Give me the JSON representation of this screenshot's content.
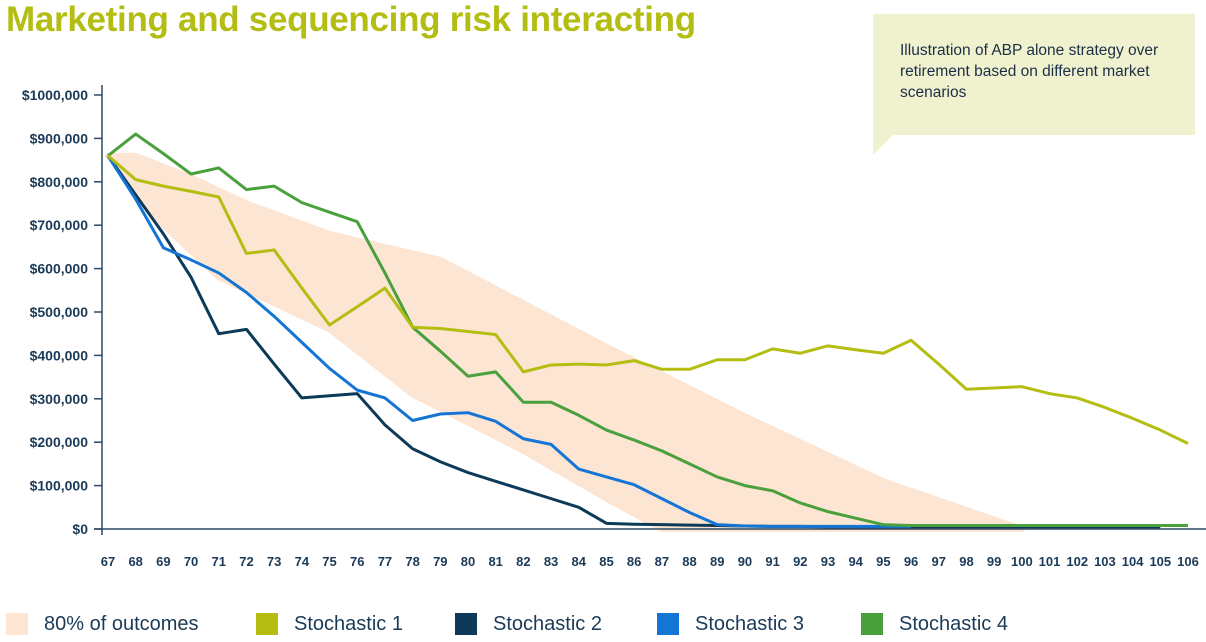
{
  "title": "Marketing and sequencing risk interacting",
  "callout": "Illustration of ABP alone strategy over retirement based on different market scenarios",
  "chart_data": {
    "type": "line",
    "title": "Marketing and sequencing risk interacting",
    "xlabel": "",
    "ylabel": "",
    "xlim": [
      67,
      106
    ],
    "ylim": [
      0,
      1000000
    ],
    "x_ticks": [
      "67",
      "68",
      "69",
      "70",
      "71",
      "72",
      "73",
      "74",
      "75",
      "76",
      "77",
      "78",
      "79",
      "80",
      "81",
      "82",
      "83",
      "84",
      "85",
      "86",
      "87",
      "88",
      "89",
      "90",
      "91",
      "92",
      "93",
      "94",
      "95",
      "96",
      "97",
      "98",
      "99",
      "100",
      "101",
      "102",
      "103",
      "104",
      "105",
      "106"
    ],
    "y_ticks": [
      {
        "value": 0,
        "label": "$0"
      },
      {
        "value": 100000,
        "label": "$100,000"
      },
      {
        "value": 200000,
        "label": "$200,000"
      },
      {
        "value": 300000,
        "label": "$300,000"
      },
      {
        "value": 400000,
        "label": "$400,000"
      },
      {
        "value": 500000,
        "label": "$500,000"
      },
      {
        "value": 600000,
        "label": "$600,000"
      },
      {
        "value": 700000,
        "label": "$700,000"
      },
      {
        "value": 800000,
        "label": "$800,000"
      },
      {
        "value": 900000,
        "label": "$900,000"
      },
      {
        "value": 1000000,
        "label": "$1000,000"
      }
    ],
    "band": {
      "name": "80% of outcomes",
      "color": "#fde5d3",
      "upper": [
        [
          67,
          860000
        ],
        [
          68,
          860000
        ],
        [
          70,
          810000
        ],
        [
          72,
          750000
        ],
        [
          75,
          680000
        ],
        [
          79,
          620000
        ],
        [
          85,
          420000
        ],
        [
          90,
          260000
        ],
        [
          95,
          110000
        ],
        [
          100,
          0
        ]
      ],
      "lower": [
        [
          100,
          0
        ],
        [
          87,
          0
        ],
        [
          85,
          70000
        ],
        [
          82,
          180000
        ],
        [
          78,
          310000
        ],
        [
          75,
          460000
        ],
        [
          73,
          520000
        ],
        [
          71,
          580000
        ],
        [
          69,
          700000
        ],
        [
          67,
          860000
        ]
      ]
    },
    "series": [
      {
        "name": "Stochastic 1",
        "color": "#b3bd12",
        "x": [
          67,
          68,
          69,
          70,
          71,
          72,
          73,
          74,
          75,
          76,
          77,
          78,
          79,
          80,
          81,
          82,
          83,
          84,
          85,
          86,
          87,
          88,
          89,
          90,
          91,
          92,
          93,
          94,
          95,
          96,
          97,
          98,
          99,
          100,
          101,
          102,
          103,
          104,
          105,
          106
        ],
        "values": [
          860000,
          805000,
          790000,
          778000,
          765000,
          635000,
          643000,
          555000,
          470000,
          512000,
          555000,
          465000,
          462000,
          455000,
          448000,
          362000,
          378000,
          380000,
          378000,
          388000,
          368000,
          368000,
          390000,
          390000,
          415000,
          405000,
          422000,
          413000,
          405000,
          435000,
          380000,
          322000,
          325000,
          328000,
          312000,
          302000,
          280000,
          255000,
          228000,
          197000
        ]
      },
      {
        "name": "Stochastic 2",
        "color": "#0e3a5a",
        "x": [
          67,
          68,
          69,
          70,
          71,
          72,
          73,
          74,
          75,
          76,
          77,
          78,
          79,
          80,
          81,
          82,
          83,
          84,
          85,
          86,
          87,
          88,
          89,
          90,
          91,
          92,
          93,
          94,
          95,
          96,
          97,
          98,
          99,
          100,
          101,
          102,
          103,
          104,
          105
        ],
        "values": [
          860000,
          770000,
          680000,
          580000,
          450000,
          460000,
          380000,
          302000,
          307000,
          312000,
          240000,
          185000,
          155000,
          130000,
          110000,
          90000,
          70000,
          50000,
          13000,
          11000,
          10000,
          9000,
          8000,
          7000,
          6000,
          6000,
          5000,
          5000,
          5000,
          5000,
          5000,
          5000,
          5000,
          5000,
          5000,
          5000,
          5000,
          5000,
          5000
        ]
      },
      {
        "name": "Stochastic 3",
        "color": "#1475d4",
        "x": [
          67,
          68,
          69,
          70,
          71,
          72,
          73,
          74,
          75,
          76,
          77,
          78,
          79,
          80,
          81,
          82,
          83,
          84,
          85,
          86,
          87,
          88,
          89,
          90,
          91,
          92,
          93,
          94,
          95,
          96
        ],
        "values": [
          860000,
          760000,
          648000,
          620000,
          590000,
          545000,
          490000,
          430000,
          370000,
          320000,
          302000,
          250000,
          265000,
          268000,
          248000,
          208000,
          195000,
          138000,
          120000,
          102000,
          70000,
          38000,
          10000,
          7000,
          6000,
          6000,
          6000,
          6000,
          6000,
          6000
        ]
      },
      {
        "name": "Stochastic 4",
        "color": "#4ba03e",
        "x": [
          67,
          68,
          69,
          70,
          71,
          72,
          73,
          74,
          75,
          76,
          77,
          78,
          79,
          80,
          81,
          82,
          83,
          84,
          85,
          86,
          87,
          88,
          89,
          90,
          91,
          92,
          93,
          94,
          95,
          96,
          97,
          98,
          99,
          100,
          101,
          102,
          103,
          104,
          105,
          106
        ],
        "values": [
          860000,
          910000,
          865000,
          818000,
          832000,
          782000,
          790000,
          752000,
          730000,
          708000,
          590000,
          465000,
          410000,
          352000,
          362000,
          292000,
          292000,
          262000,
          228000,
          205000,
          180000,
          150000,
          120000,
          100000,
          88000,
          60000,
          40000,
          25000,
          10000,
          8000,
          8000,
          8000,
          8000,
          8000,
          8000,
          8000,
          8000,
          8000,
          8000,
          8000
        ]
      }
    ],
    "legend": [
      "80% of outcomes",
      "Stochastic 1",
      "Stochastic 2",
      "Stochastic 3",
      "Stochastic 4"
    ],
    "legend_placement": "bottom"
  }
}
